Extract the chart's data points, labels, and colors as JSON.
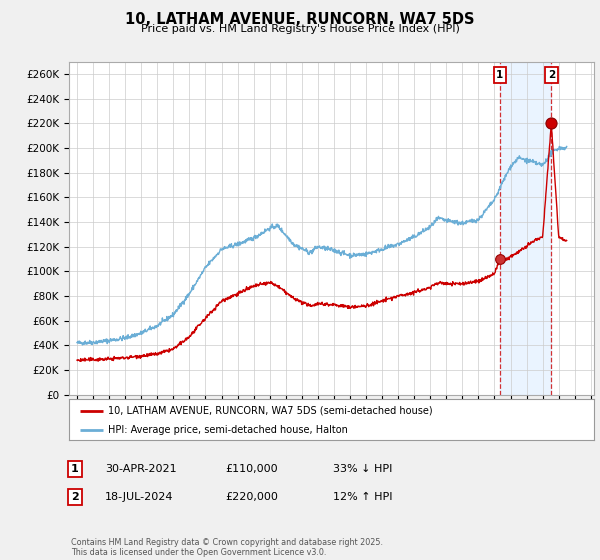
{
  "title": "10, LATHAM AVENUE, RUNCORN, WA7 5DS",
  "subtitle": "Price paid vs. HM Land Registry's House Price Index (HPI)",
  "ylabel_ticks": [
    "£0",
    "£20K",
    "£40K",
    "£60K",
    "£80K",
    "£100K",
    "£120K",
    "£140K",
    "£160K",
    "£180K",
    "£200K",
    "£220K",
    "£240K",
    "£260K"
  ],
  "ytick_values": [
    0,
    20000,
    40000,
    60000,
    80000,
    100000,
    120000,
    140000,
    160000,
    180000,
    200000,
    220000,
    240000,
    260000
  ],
  "ylim": [
    0,
    270000
  ],
  "xlim_start": 1994.5,
  "xlim_end": 2027.2,
  "hpi_color": "#6baed6",
  "price_color": "#cc0000",
  "bg_color": "#f0f0f0",
  "plot_bg_color": "#ffffff",
  "shade_color": "#ddeeff",
  "legend_label_price": "10, LATHAM AVENUE, RUNCORN, WA7 5DS (semi-detached house)",
  "legend_label_hpi": "HPI: Average price, semi-detached house, Halton",
  "annotation_1_date": "30-APR-2021",
  "annotation_1_price": "£110,000",
  "annotation_1_hpi": "33% ↓ HPI",
  "annotation_2_date": "18-JUL-2024",
  "annotation_2_price": "£220,000",
  "annotation_2_hpi": "12% ↑ HPI",
  "footer": "Contains HM Land Registry data © Crown copyright and database right 2025.\nThis data is licensed under the Open Government Licence v3.0.",
  "sale_1_x": 2021.33,
  "sale_1_y": 110000,
  "sale_2_x": 2024.54,
  "sale_2_y": 220000
}
